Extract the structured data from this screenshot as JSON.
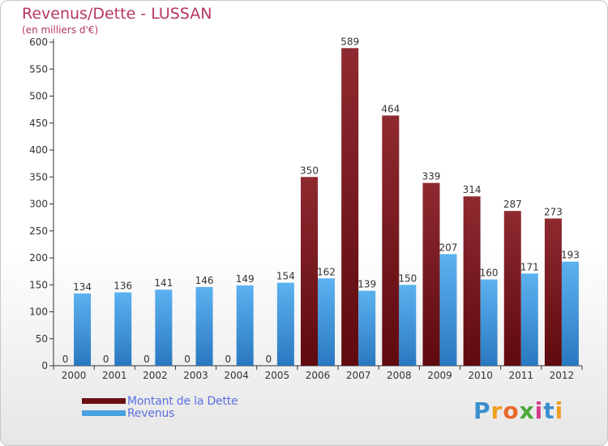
{
  "title": "Revenus/Dette - LUSSAN",
  "subtitle": "(en milliers d'€)",
  "legend": {
    "debt_label": "Montant de la Dette",
    "revenue_label": "Revenus"
  },
  "logo": {
    "text": "Proxiti",
    "letters": [
      "P",
      "r",
      "o",
      "x",
      "i",
      "t",
      "i"
    ],
    "colors": [
      "#3a8fd0",
      "#f0a020",
      "#e86a2a",
      "#4aa83a",
      "#d43a8a",
      "#3a8fd0",
      "#f0a020"
    ]
  },
  "colors": {
    "debt": "#7a1a1e",
    "revenue": "#4aa0e0",
    "title": "#b5365f",
    "legend_text": "#5b6fe0"
  },
  "chart_data": {
    "type": "bar",
    "categories": [
      "2000",
      "2001",
      "2002",
      "2003",
      "2004",
      "2005",
      "2006",
      "2007",
      "2008",
      "2009",
      "2010",
      "2011",
      "2012"
    ],
    "series": [
      {
        "name": "Montant de la Dette",
        "values": [
          0,
          0,
          0,
          0,
          0,
          0,
          350,
          589,
          464,
          339,
          314,
          287,
          273
        ]
      },
      {
        "name": "Revenus",
        "values": [
          134,
          136,
          141,
          146,
          149,
          154,
          162,
          139,
          150,
          207,
          160,
          171,
          193
        ]
      }
    ],
    "title": "Revenus/Dette - LUSSAN",
    "ylabel": "(en milliers d'€)",
    "ylim": [
      0,
      600
    ],
    "yticks": [
      0,
      50,
      100,
      150,
      200,
      250,
      300,
      350,
      400,
      450,
      500,
      550,
      600
    ],
    "grid": false,
    "legend_position": "bottom-left"
  }
}
